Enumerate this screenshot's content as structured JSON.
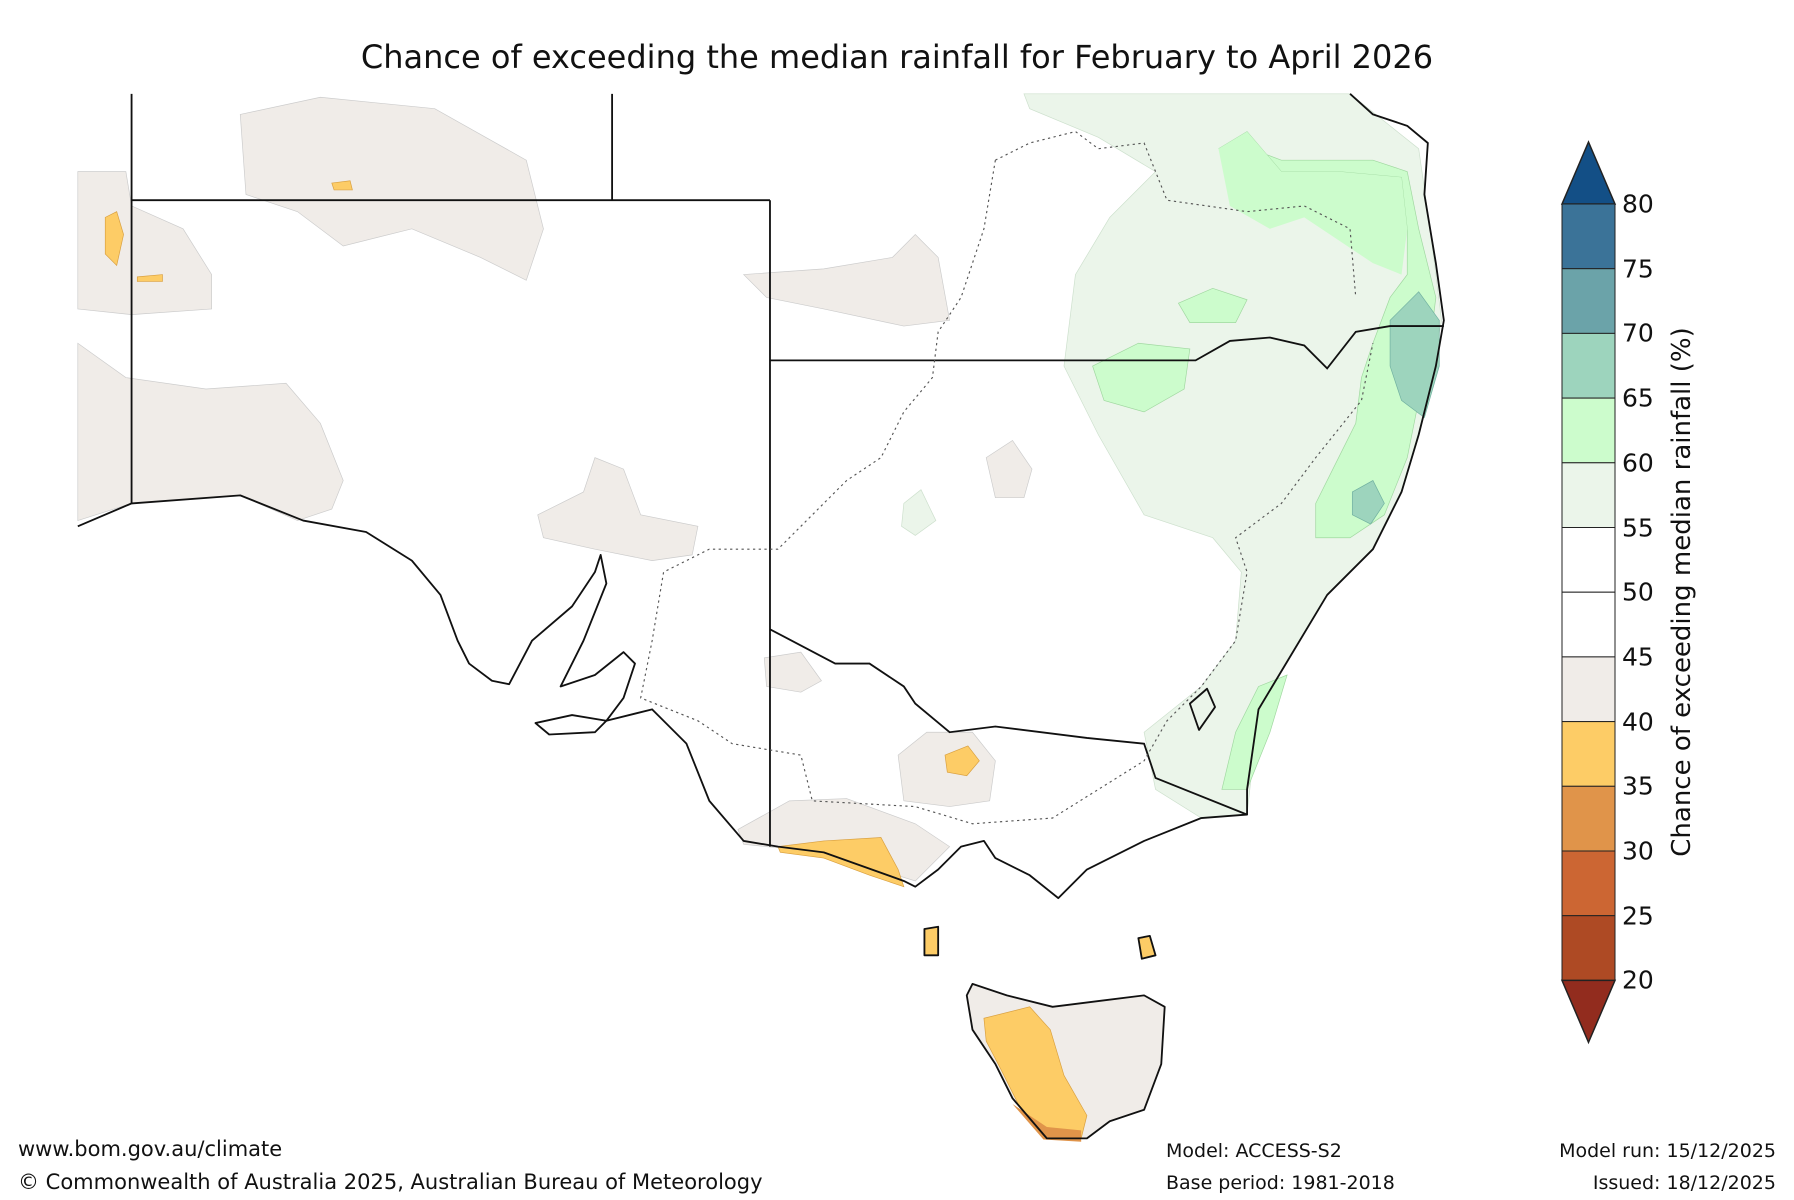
{
  "title": "Chance of exceeding the median rainfall for February to April 2026",
  "legend": {
    "label": "Chance of exceeding median rainfall (%)",
    "ticks": [
      "80",
      "75",
      "70",
      "65",
      "60",
      "55",
      "50",
      "45",
      "40",
      "35",
      "30",
      "25",
      "20"
    ],
    "bands": [
      {
        "range": "75-80",
        "color": "#3b7398"
      },
      {
        "range": "70-75",
        "color": "#6ba3a9"
      },
      {
        "range": "65-70",
        "color": "#9dd4bd"
      },
      {
        "range": "60-65",
        "color": "#ccfccc"
      },
      {
        "range": "55-60",
        "color": "#ebf5ea"
      },
      {
        "range": "50-55",
        "color": "#ffffff"
      },
      {
        "range": "45-50",
        "color": "#ffffff"
      },
      {
        "range": "40-45",
        "color": "#f0ece8"
      },
      {
        "range": "35-40",
        "color": "#fdcc66"
      },
      {
        "range": "30-35",
        "color": "#e0944a"
      },
      {
        "range": "25-30",
        "color": "#cc6633"
      },
      {
        "range": "20-25",
        "color": "#ae4a24"
      }
    ],
    "over_color": "#134f86",
    "under_color": "#922c1e"
  },
  "footer": {
    "url": "www.bom.gov.au/climate",
    "copyright": "© Commonwealth of Australia 2025, Australian Bureau of Meteorology",
    "model": "Model: ACCESS-S2",
    "base_period": "Base period: 1981-2018",
    "model_run": "Model run: 15/12/2025",
    "issued": "Issued: 18/12/2025"
  }
}
